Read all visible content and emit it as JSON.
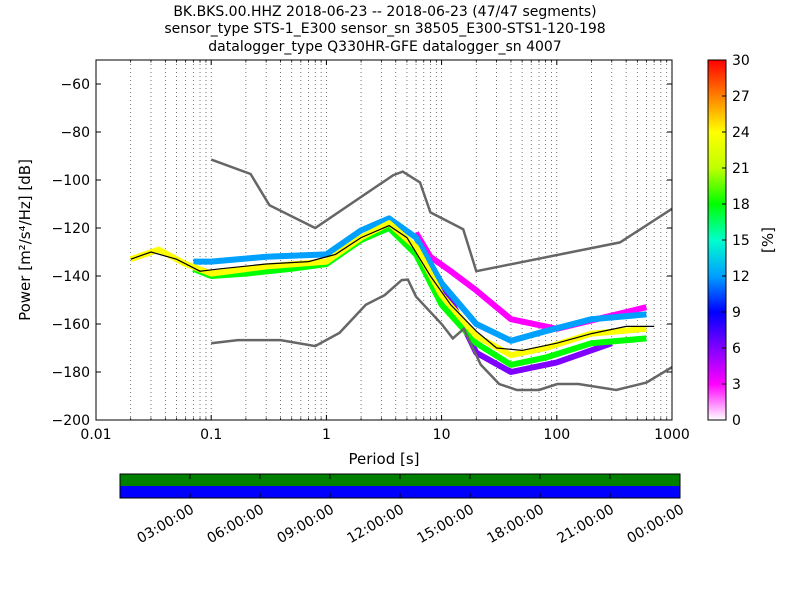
{
  "title_lines": [
    "BK.BKS.00.HHZ   2018-06-23 -- 2018-06-23  (47/47 segments)",
    "sensor_type STS-1_E300 sensor_sn 38505_E300-STS1-120-198",
    "datalogger_type Q330HR-GFE datalogger_sn 4007"
  ],
  "chart_data": {
    "type": "heatmap",
    "xlabel": "Period [s]",
    "ylabel": "Power [m²/s⁴/Hz] [dB]",
    "x_scale": "log",
    "xlim": [
      0.01,
      1000
    ],
    "ylim": [
      -200,
      -50
    ],
    "x_ticks": [
      0.01,
      0.1,
      1,
      10,
      100,
      1000
    ],
    "x_tick_labels": [
      "0.01",
      "0.1",
      "1",
      "10",
      "100",
      "1000"
    ],
    "y_ticks": [
      -200,
      -180,
      -160,
      -140,
      -120,
      -100,
      -80,
      -60
    ],
    "y_tick_labels": [
      "−200",
      "−180",
      "−160",
      "−140",
      "−120",
      "−100",
      "−80",
      "−60"
    ],
    "grid": "dotted vertical",
    "colorbar": {
      "label": "[%]",
      "range": [
        0,
        30
      ],
      "ticks": [
        "0",
        "3",
        "6",
        "9",
        "12",
        "15",
        "18",
        "21",
        "24",
        "27",
        "30"
      ],
      "colors": [
        "#ffffff",
        "#ff00ff",
        "#8000ff",
        "#0000ff",
        "#00a0ff",
        "#00ffcc",
        "#00ff00",
        "#c0ff00",
        "#ffff00",
        "#ff8000",
        "#ff0000"
      ]
    },
    "noise_models": [
      {
        "name": "high",
        "color": "#666666",
        "points": [
          [
            0.1,
            -91.5
          ],
          [
            0.22,
            -97.5
          ],
          [
            0.32,
            -110.5
          ],
          [
            0.8,
            -120
          ],
          [
            3.8,
            -98
          ],
          [
            4.6,
            -96.5
          ],
          [
            6.5,
            -101
          ],
          [
            8,
            -113.5
          ],
          [
            15.4,
            -120.5
          ],
          [
            20,
            -138
          ],
          [
            354,
            -126
          ],
          [
            1000,
            -112
          ]
        ]
      },
      {
        "name": "low",
        "color": "#666666",
        "points": [
          [
            0.1,
            -168
          ],
          [
            0.17,
            -166.7
          ],
          [
            0.4,
            -166.7
          ],
          [
            0.8,
            -169.2
          ],
          [
            1.3,
            -163.7
          ],
          [
            2.2,
            -152
          ],
          [
            3.2,
            -148
          ],
          [
            4.5,
            -141.7
          ],
          [
            5.1,
            -141.5
          ],
          [
            6,
            -148.6
          ],
          [
            10,
            -160
          ],
          [
            12.5,
            -166
          ],
          [
            15.6,
            -162
          ],
          [
            21.9,
            -177
          ],
          [
            31.6,
            -185
          ],
          [
            45,
            -187.5
          ],
          [
            70,
            -187.5
          ],
          [
            101,
            -185
          ],
          [
            154,
            -185
          ],
          [
            328,
            -187.5
          ],
          [
            600,
            -184.4
          ],
          [
            1000,
            -178
          ]
        ]
      }
    ],
    "density_bands": [
      {
        "level": 25,
        "points": [
          [
            0.02,
            -133
          ],
          [
            0.035,
            -129
          ],
          [
            0.06,
            -135
          ],
          [
            0.1,
            -139
          ],
          [
            0.3,
            -136
          ],
          [
            1,
            -134
          ],
          [
            2,
            -124
          ],
          [
            3.5,
            -118
          ],
          [
            6,
            -128
          ],
          [
            10,
            -148
          ],
          [
            20,
            -165
          ],
          [
            40,
            -173
          ],
          [
            80,
            -170
          ],
          [
            200,
            -164
          ],
          [
            600,
            -162
          ]
        ]
      },
      {
        "level": 18,
        "points": [
          [
            0.07,
            -137
          ],
          [
            0.1,
            -140
          ],
          [
            0.2,
            -139
          ],
          [
            0.5,
            -137
          ],
          [
            1,
            -135
          ],
          [
            2,
            -125
          ],
          [
            3.5,
            -120
          ],
          [
            6,
            -131
          ],
          [
            10,
            -152
          ],
          [
            20,
            -168
          ],
          [
            40,
            -177
          ],
          [
            80,
            -174
          ],
          [
            200,
            -168
          ],
          [
            600,
            -166
          ]
        ]
      },
      {
        "level": 12,
        "points": [
          [
            0.07,
            -134
          ],
          [
            0.1,
            -134
          ],
          [
            0.3,
            -132
          ],
          [
            1,
            -131
          ],
          [
            2,
            -121
          ],
          [
            3.5,
            -116
          ],
          [
            6,
            -124
          ],
          [
            10,
            -143
          ],
          [
            20,
            -160
          ],
          [
            40,
            -167
          ],
          [
            80,
            -163
          ],
          [
            200,
            -158
          ],
          [
            600,
            -156
          ]
        ]
      },
      {
        "level": 6,
        "points": [
          [
            5,
            -125
          ],
          [
            8,
            -140
          ],
          [
            12,
            -150
          ],
          [
            20,
            -172
          ],
          [
            40,
            -180
          ],
          [
            100,
            -176
          ],
          [
            300,
            -168
          ]
        ]
      },
      {
        "level": 3,
        "points": [
          [
            6,
            -122
          ],
          [
            8,
            -132
          ],
          [
            12,
            -138
          ],
          [
            20,
            -146
          ],
          [
            40,
            -158
          ],
          [
            100,
            -162
          ],
          [
            600,
            -153
          ]
        ]
      }
    ],
    "mean_curve": {
      "name": "mean",
      "color": "#000000",
      "points": [
        [
          0.02,
          -133
        ],
        [
          0.03,
          -130
        ],
        [
          0.05,
          -133
        ],
        [
          0.08,
          -138
        ],
        [
          0.12,
          -137
        ],
        [
          0.3,
          -135
        ],
        [
          0.7,
          -134
        ],
        [
          1.2,
          -131
        ],
        [
          2,
          -124
        ],
        [
          3.5,
          -119
        ],
        [
          5,
          -124
        ],
        [
          8,
          -140
        ],
        [
          12,
          -152
        ],
        [
          20,
          -163
        ],
        [
          30,
          -170
        ],
        [
          50,
          -171
        ],
        [
          100,
          -168
        ],
        [
          200,
          -164
        ],
        [
          400,
          -161
        ],
        [
          700,
          -161
        ]
      ]
    },
    "time_axis": {
      "tick_labels": [
        "03:00:00",
        "06:00:00",
        "09:00:00",
        "12:00:00",
        "15:00:00",
        "18:00:00",
        "21:00:00",
        "00:00:00"
      ],
      "bars": [
        {
          "name": "segments",
          "color": "#008000"
        },
        {
          "name": "coverage",
          "color": "#0000ff"
        }
      ]
    }
  }
}
